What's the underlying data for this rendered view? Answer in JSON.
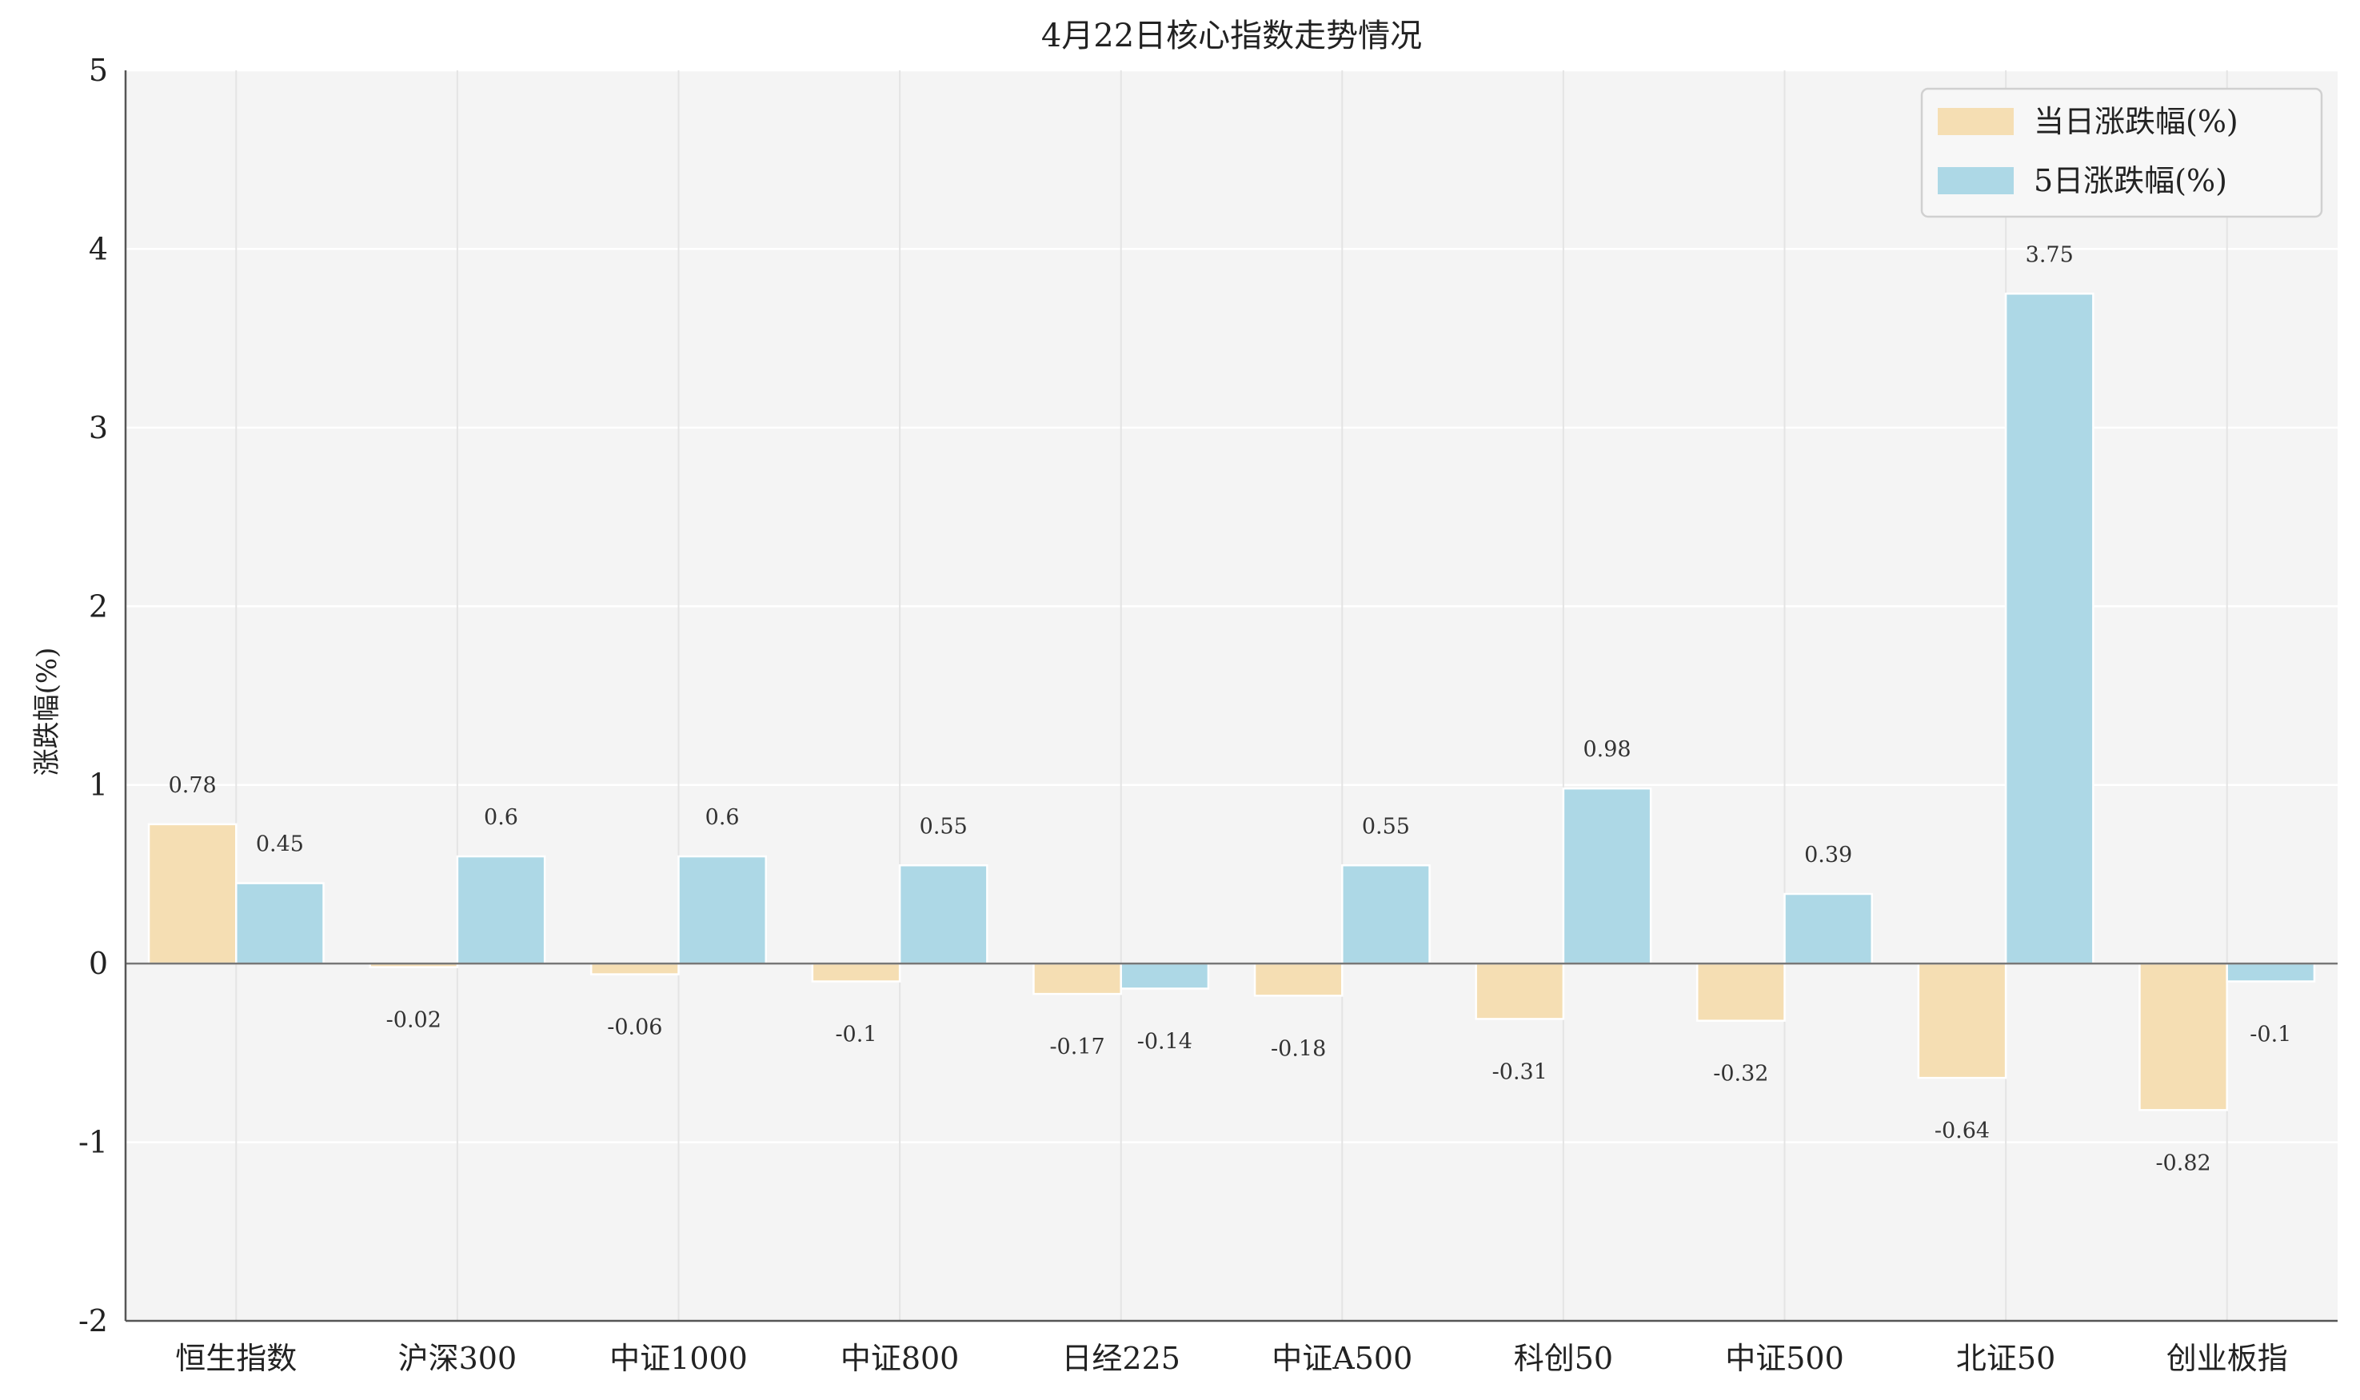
{
  "chart_data": {
    "type": "bar",
    "title": "4月22日核心指数走势情况",
    "xlabel": "",
    "ylabel": "涨跌幅(%)",
    "ylim": [
      -2,
      5
    ],
    "yticks": [
      -2,
      -1,
      0,
      1,
      2,
      3,
      4,
      5
    ],
    "grid": true,
    "legend_position": "top-right",
    "categories": [
      "恒生指数",
      "沪深300",
      "中证1000",
      "中证800",
      "日经225",
      "中证A500",
      "科创50",
      "中证500",
      "北证50",
      "创业板指"
    ],
    "series": [
      {
        "name": "当日涨跌幅(%)",
        "color": "#F5DEB3",
        "values": [
          0.78,
          -0.02,
          -0.06,
          -0.1,
          -0.17,
          -0.18,
          -0.31,
          -0.32,
          -0.64,
          -0.82
        ],
        "labels": [
          "0.78",
          "-0.02",
          "-0.06",
          "-0.1",
          "-0.17",
          "-0.18",
          "-0.31",
          "-0.32",
          "-0.64",
          "-0.82"
        ]
      },
      {
        "name": "5日涨跌幅(%)",
        "color": "#ADD8E6",
        "values": [
          0.45,
          0.6,
          0.6,
          0.55,
          -0.14,
          0.55,
          0.98,
          0.39,
          3.75,
          -0.1
        ],
        "labels": [
          "0.45",
          "0.6",
          "0.6",
          "0.55",
          "-0.14",
          "0.55",
          "0.98",
          "0.39",
          "3.75",
          "-0.1"
        ]
      }
    ]
  }
}
